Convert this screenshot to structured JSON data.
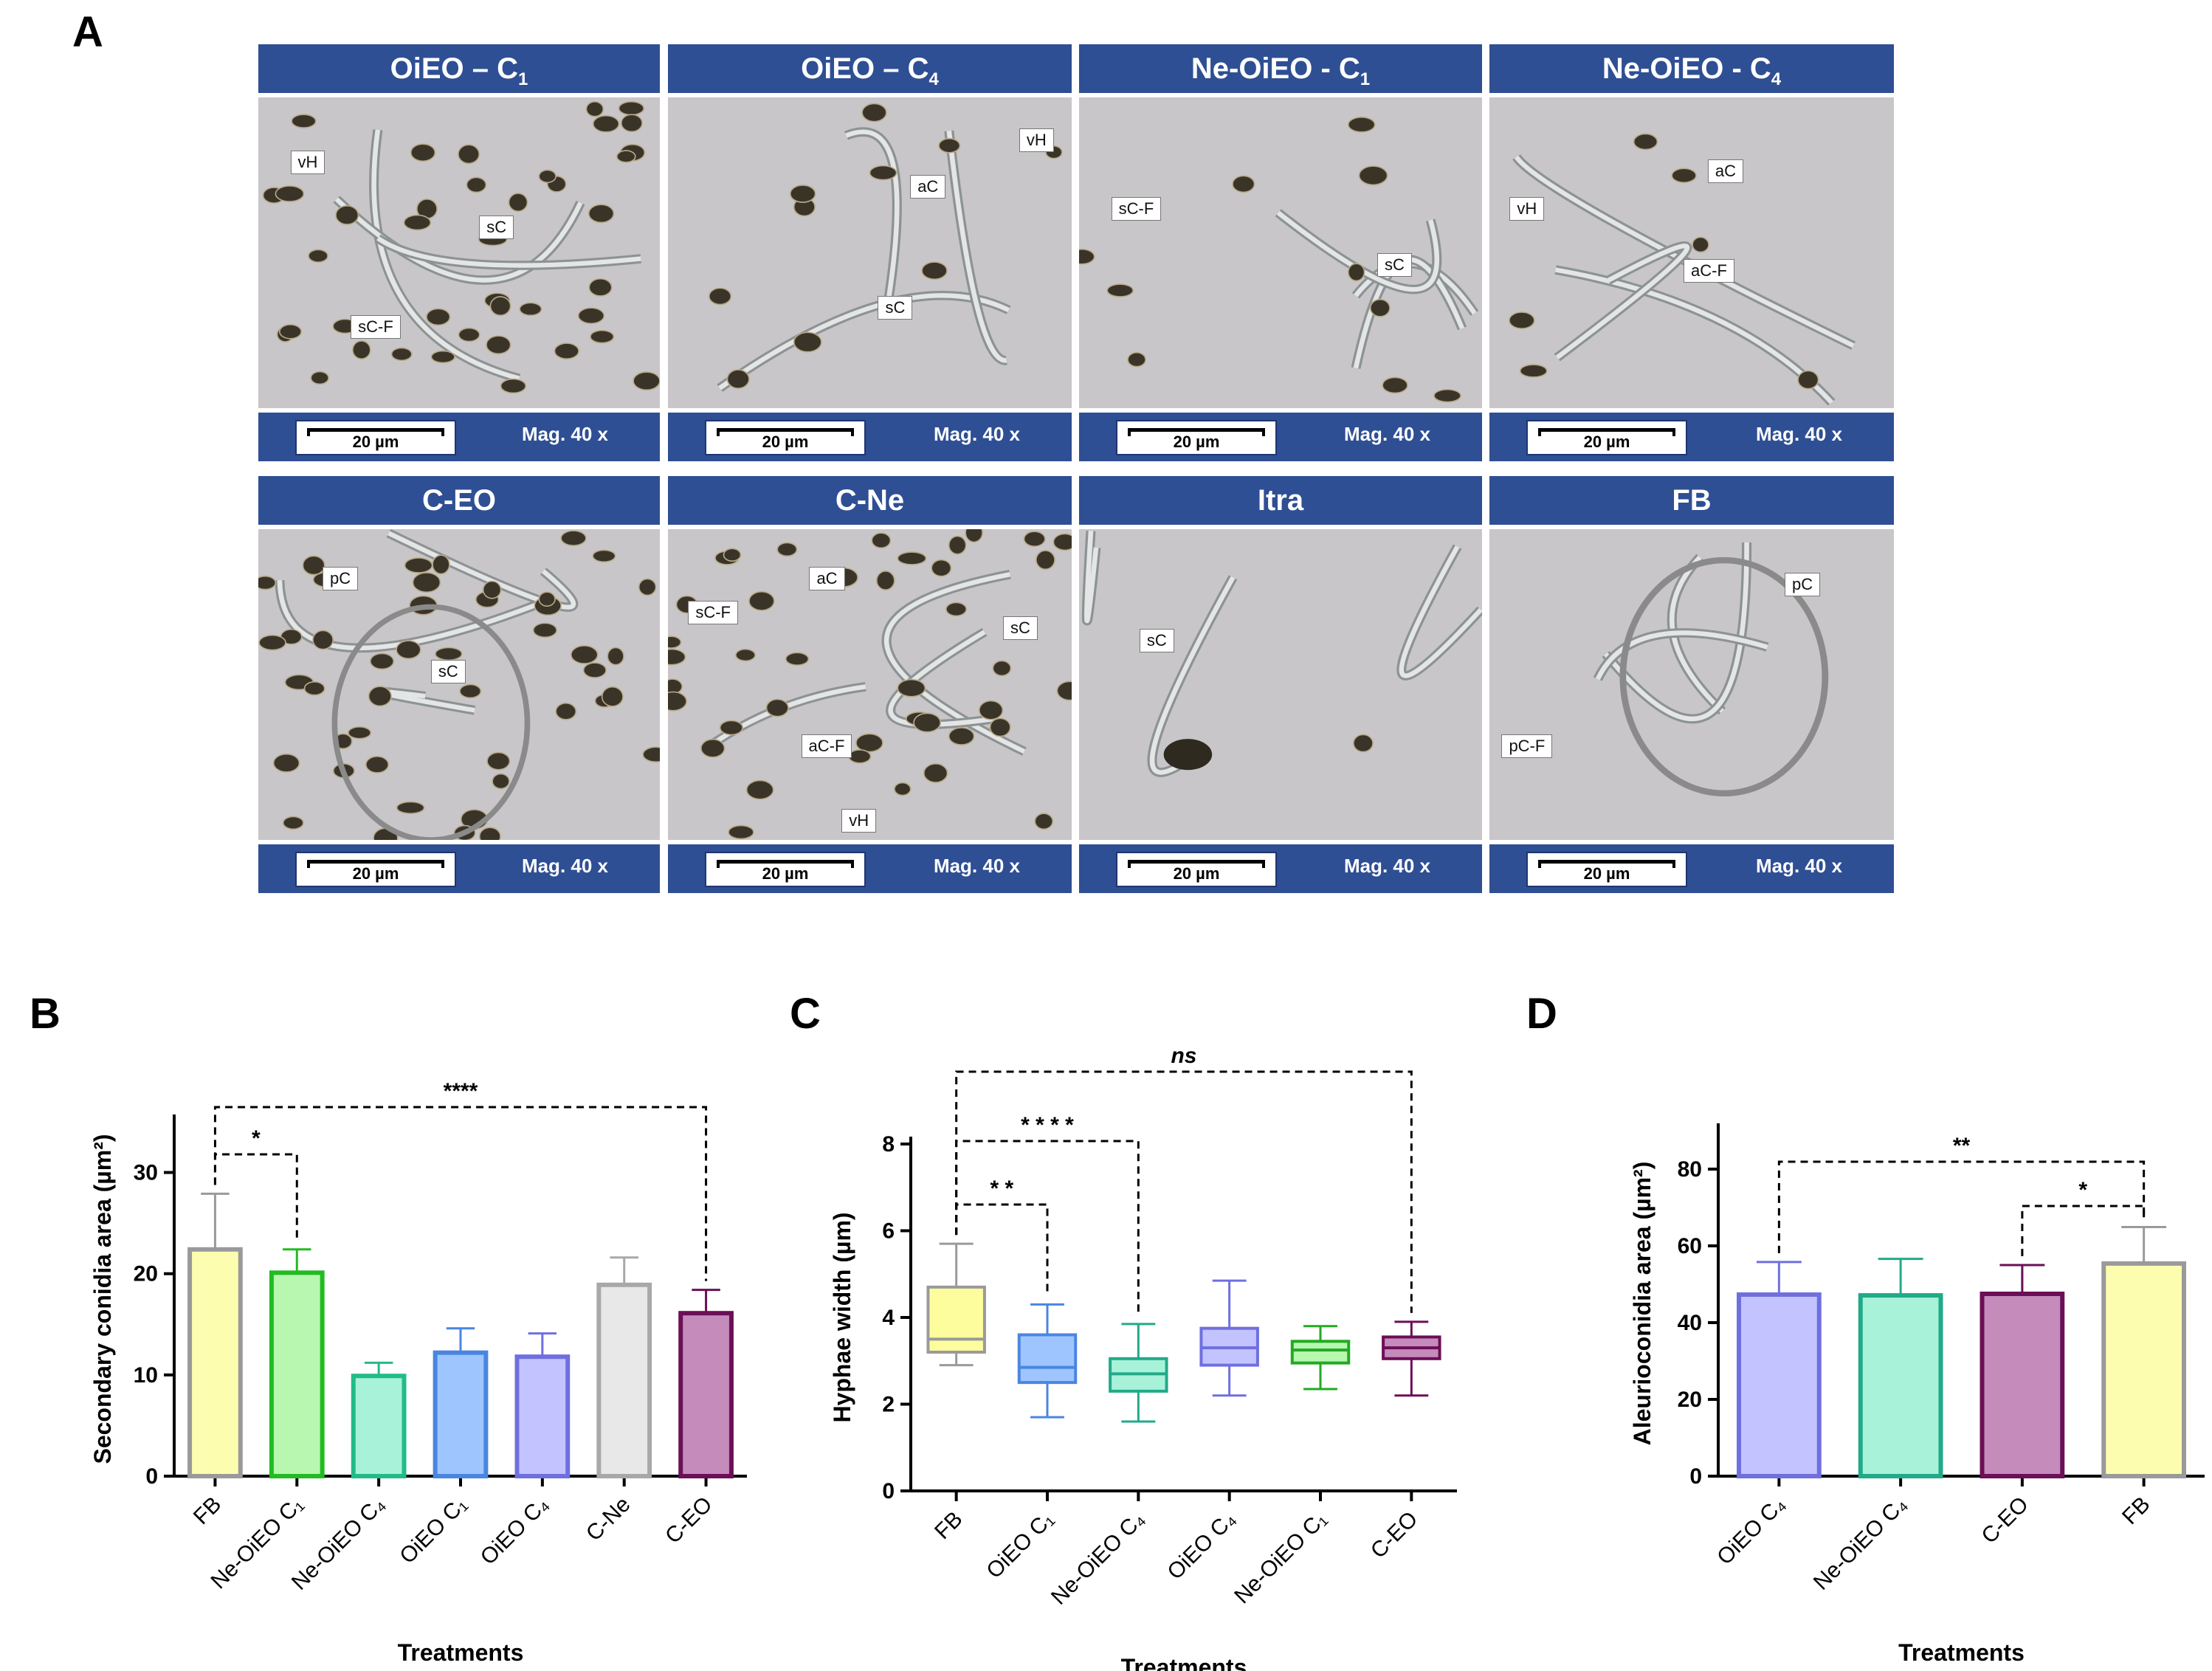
{
  "panel_a": {
    "letter": "A",
    "tiles": [
      {
        "title": "OiEO – C",
        "sub": "1",
        "scale": "20 µm",
        "mag": "Mag. 40 x",
        "labels": [
          "vH",
          "sC",
          "sC-F"
        ]
      },
      {
        "title": "OiEO – C",
        "sub": "4",
        "scale": "20 µm",
        "mag": "Mag. 40 x",
        "labels": [
          "vH",
          "aC",
          "sC"
        ]
      },
      {
        "title": "Ne-OiEO - C",
        "sub": "1",
        "scale": "20 µm",
        "mag": "Mag. 40 x",
        "labels": [
          "sC-F",
          "sC"
        ]
      },
      {
        "title": "Ne-OiEO - C",
        "sub": "4",
        "scale": "20 µm",
        "mag": "Mag. 40 x",
        "labels": [
          "aC",
          "vH",
          "aC-F"
        ]
      },
      {
        "title": "C-EO",
        "sub": "",
        "scale": "20 µm",
        "mag": "Mag. 40 x",
        "labels": [
          "pC",
          "sC"
        ]
      },
      {
        "title": "C-Ne",
        "sub": "",
        "scale": "20 µm",
        "mag": "Mag. 40 x",
        "labels": [
          "aC",
          "sC-F",
          "sC",
          "aC-F",
          "vH"
        ]
      },
      {
        "title": "Itra",
        "sub": "",
        "scale": "20 µm",
        "mag": "Mag. 40 x",
        "labels": [
          "sC"
        ]
      },
      {
        "title": "FB",
        "sub": "",
        "scale": "20 µm",
        "mag": "Mag. 40 x",
        "labels": [
          "pC",
          "pC-F"
        ]
      }
    ]
  },
  "chart_data": [
    {
      "panel": "B",
      "type": "bar",
      "xlabel": "Treatments",
      "ylabel": "Secondary conidia area (µm²)",
      "ylim": [
        0,
        35
      ],
      "yticks": [
        0,
        10,
        20,
        30
      ],
      "categories": [
        "FB",
        "Ne-OiEO C₁",
        "Ne-OiEO C₄",
        "OiEO C₁",
        "OiEO C₄",
        "C-Ne",
        "C-EO"
      ],
      "values": [
        22.4,
        20.1,
        9.9,
        12.2,
        11.8,
        18.9,
        16.1
      ],
      "errors": [
        5.5,
        2.3,
        1.3,
        2.4,
        2.3,
        2.7,
        2.3
      ],
      "fills": [
        "#fdfdb0",
        "#b7f7b0",
        "#a8f2da",
        "#9fc5ff",
        "#c3c3ff",
        "#e8e8e8",
        "#c48bbb"
      ],
      "strokes": [
        "#9a9a9a",
        "#22bb22",
        "#22bb88",
        "#4a86e0",
        "#6f6fe0",
        "#a8a8a8",
        "#6b0f57"
      ],
      "significance": [
        {
          "from": 0,
          "to": 1,
          "text": "*"
        },
        {
          "from": 0,
          "to": 6,
          "text": "****"
        }
      ]
    },
    {
      "panel": "C",
      "type": "box",
      "xlabel": "Treatments",
      "ylabel": "Hyphae width (µm)",
      "ylim": [
        0,
        8
      ],
      "yticks": [
        0,
        2,
        4,
        6,
        8
      ],
      "categories": [
        "FB",
        "OiEO C₁",
        "Ne-OiEO C₄",
        "OiEO C₄",
        "Ne-OiEO C₁",
        "C-EO"
      ],
      "boxes": [
        {
          "min": 2.9,
          "q1": 3.2,
          "median": 3.5,
          "q3": 4.7,
          "max": 5.7
        },
        {
          "min": 1.7,
          "q1": 2.5,
          "median": 2.85,
          "q3": 3.6,
          "max": 4.3
        },
        {
          "min": 1.6,
          "q1": 2.3,
          "median": 2.7,
          "q3": 3.05,
          "max": 3.85
        },
        {
          "min": 2.2,
          "q1": 2.9,
          "median": 3.3,
          "q3": 3.75,
          "max": 4.85
        },
        {
          "min": 2.35,
          "q1": 2.95,
          "median": 3.25,
          "q3": 3.45,
          "max": 3.8
        },
        {
          "min": 2.2,
          "q1": 3.05,
          "median": 3.3,
          "q3": 3.55,
          "max": 3.9
        }
      ],
      "fills": [
        "#fdfd9e",
        "#9fc5ff",
        "#a8f2da",
        "#c3c3ff",
        "#b7f7b0",
        "#c48bbb"
      ],
      "strokes": [
        "#9a9a9a",
        "#4a86e0",
        "#22aa88",
        "#6f6fe0",
        "#22aa22",
        "#6b0f57"
      ],
      "significance": [
        {
          "from": 0,
          "to": 1,
          "text": "* *"
        },
        {
          "from": 0,
          "to": 2,
          "text": "* * * *"
        },
        {
          "from": 0,
          "to": 5,
          "text": "ns"
        }
      ]
    },
    {
      "panel": "D",
      "type": "bar",
      "xlabel": "Treatments",
      "ylabel": "Aleurioconidia area (µm²)",
      "ylim": [
        0,
        90
      ],
      "yticks": [
        0,
        20,
        40,
        60,
        80
      ],
      "categories": [
        "OiEO C₄",
        "Ne-OiEO C₄",
        "C-EO",
        "FB"
      ],
      "values": [
        47.3,
        47.1,
        47.5,
        55.4
      ],
      "errors": [
        8.5,
        9.5,
        7.5,
        9.5
      ],
      "fills": [
        "#c3c3ff",
        "#a8f2da",
        "#c48bbb",
        "#fdfdb0"
      ],
      "strokes": [
        "#6f6fe0",
        "#22aa88",
        "#6b0f57",
        "#9a9a9a"
      ],
      "significance": [
        {
          "from": 0,
          "to": 3,
          "text": "**"
        },
        {
          "from": 2,
          "to": 3,
          "text": "*"
        }
      ]
    }
  ]
}
